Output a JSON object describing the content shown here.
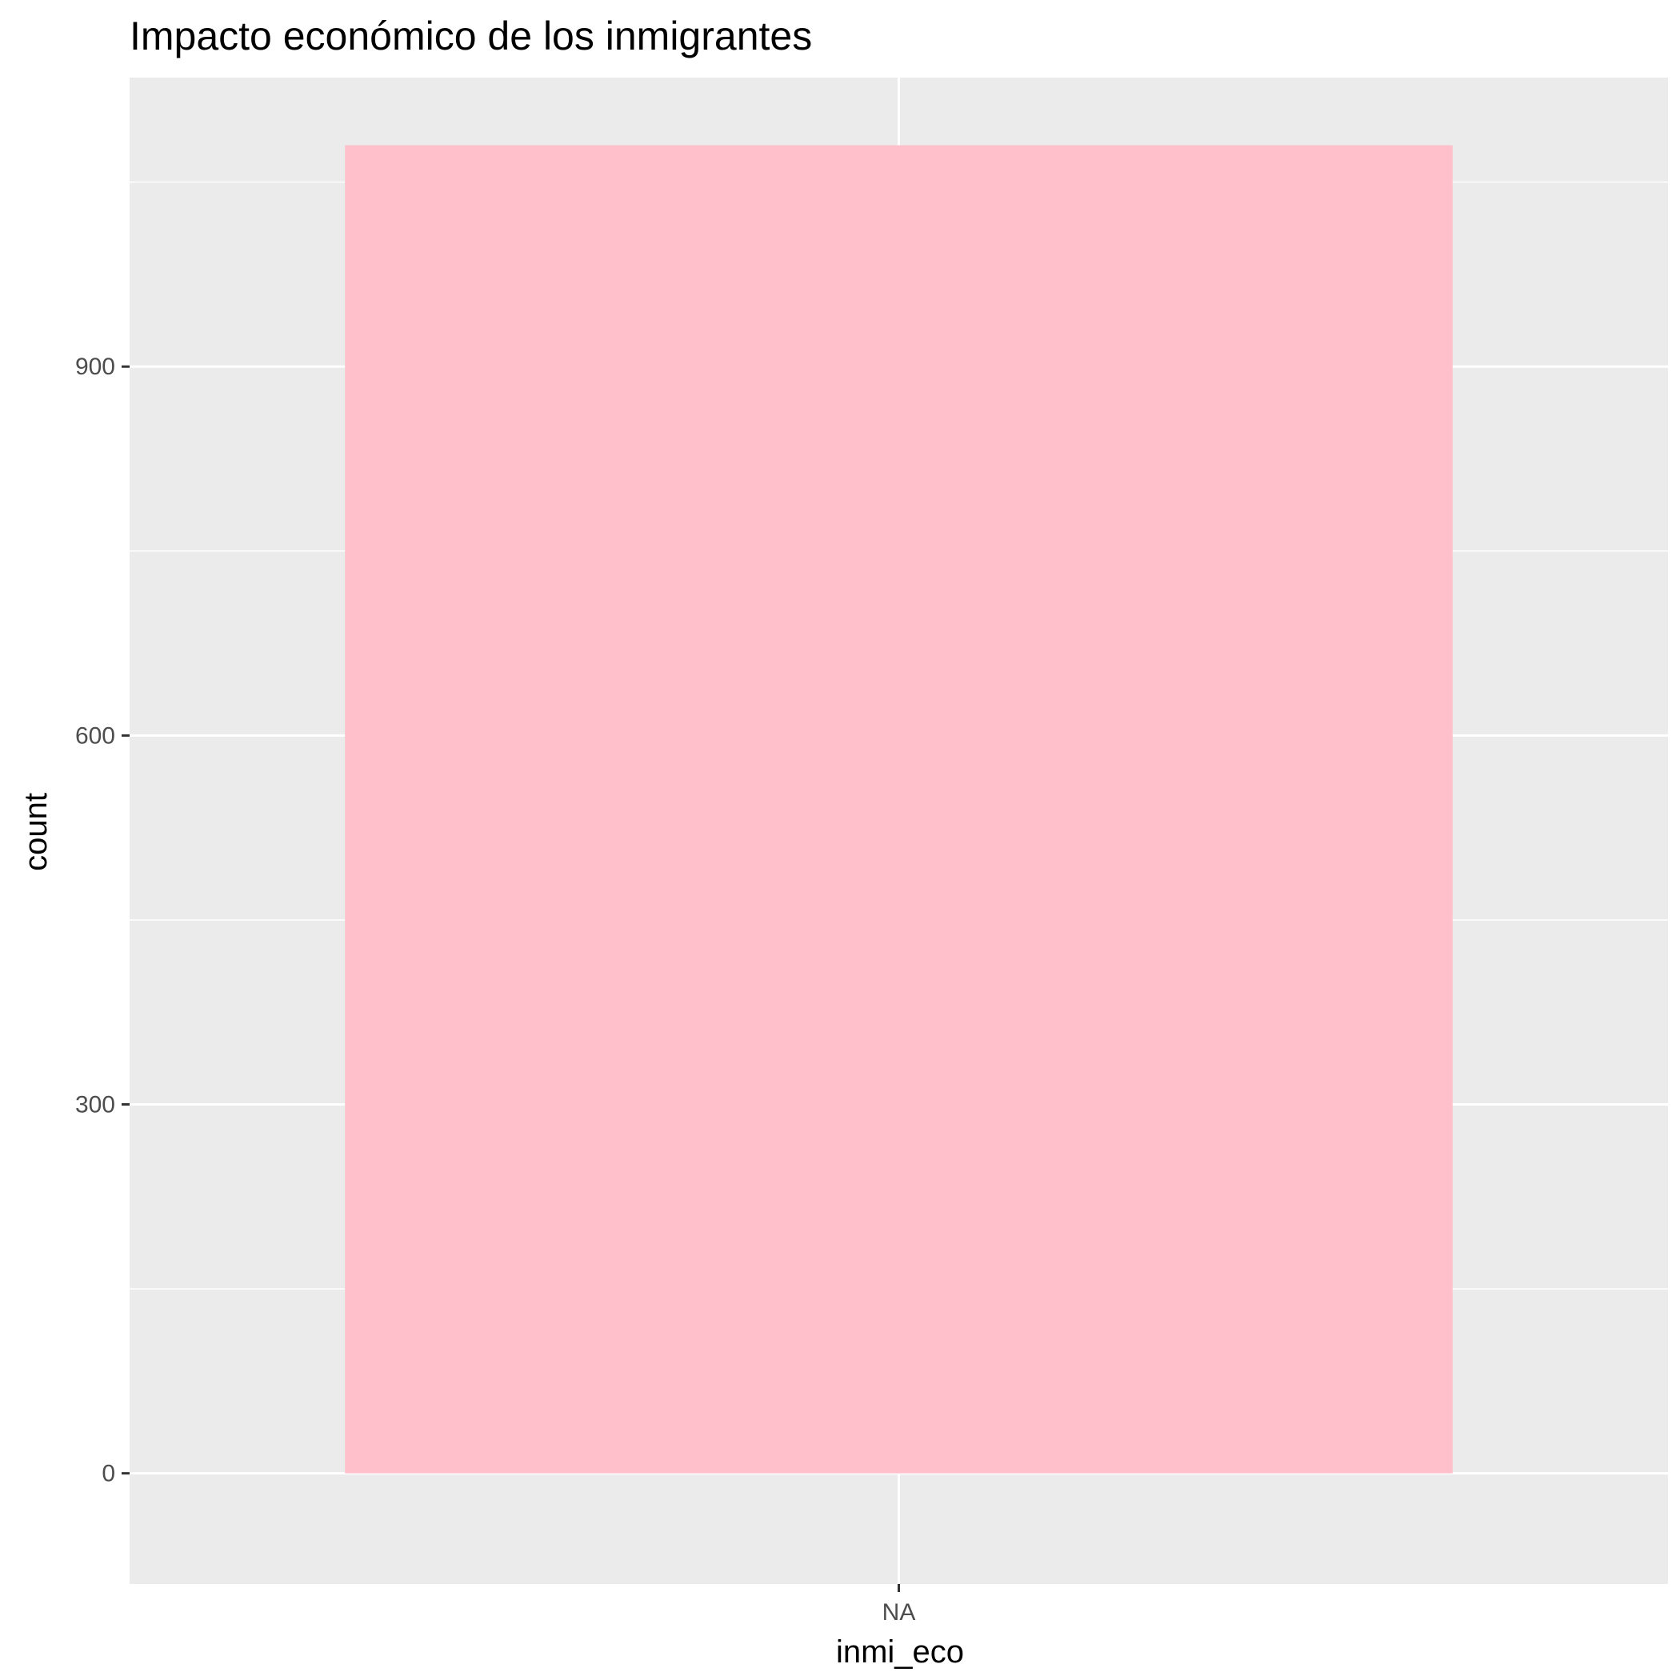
{
  "chart_data": {
    "type": "bar",
    "title": "Impacto económico de los inmigrantes",
    "xlabel": "inmi_eco",
    "ylabel": "count",
    "categories": [
      "NA"
    ],
    "values": [
      1080
    ],
    "ylim": [
      -90,
      1135
    ],
    "yticks": [
      0,
      300,
      600,
      900
    ],
    "yticks_minor": [
      150,
      450,
      750,
      1050
    ],
    "ytick_labels": [
      "0",
      "300",
      "600",
      "900"
    ],
    "grid": true,
    "legend": "none",
    "colors": {
      "bar": "#FFC0CB",
      "panel": "#EBEBEB",
      "grid": "#FFFFFF",
      "tick": "#333333"
    }
  }
}
